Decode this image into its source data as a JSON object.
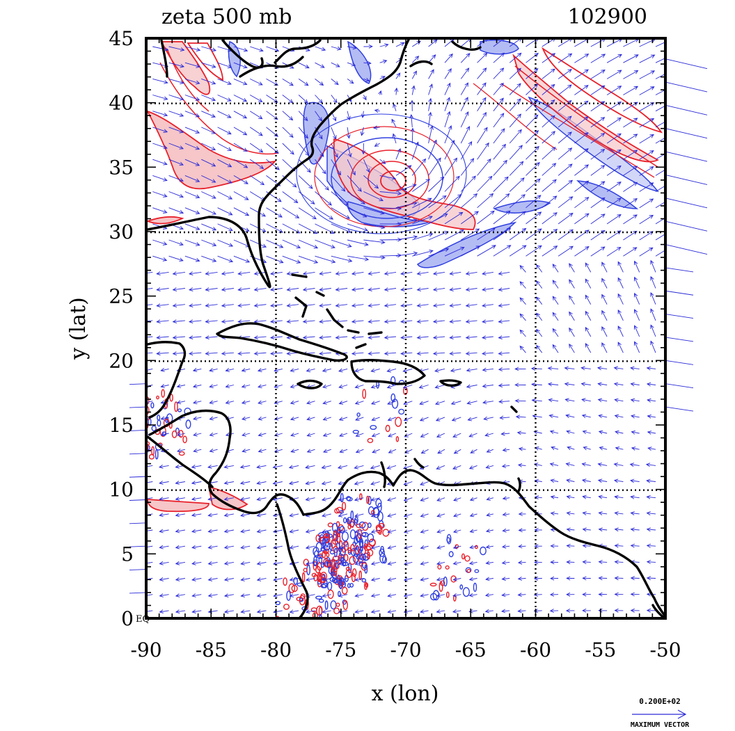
{
  "plot": {
    "title_left": "zeta 500 mb",
    "title_right": "102900",
    "xlabel": "x (lon)",
    "ylabel": "y (lat)",
    "corner_label": "EQ",
    "legend_value": "0.200E+02",
    "legend_label": "MAXIMUM VECTOR"
  },
  "axes": {
    "x_range": [
      -90,
      -50
    ],
    "y_range": [
      0,
      45
    ],
    "x_ticks": [
      "-90",
      "-85",
      "-80",
      "-75",
      "-70",
      "-65",
      "-60",
      "-55",
      "-50"
    ],
    "y_ticks": [
      "0",
      "5",
      "10",
      "15",
      "20",
      "25",
      "30",
      "35",
      "40",
      "45"
    ],
    "grid_lon": [
      -80,
      -70,
      -60
    ],
    "grid_lat": [
      10,
      20,
      30,
      40
    ]
  },
  "colors": {
    "positive_vorticity": "#e8202a",
    "positive_fill": "#f6c6c8",
    "negative_vorticity": "#3040e0",
    "negative_fill": "#b4bcf4",
    "coastline": "#000000",
    "vectors": "#2a2ad8"
  }
}
